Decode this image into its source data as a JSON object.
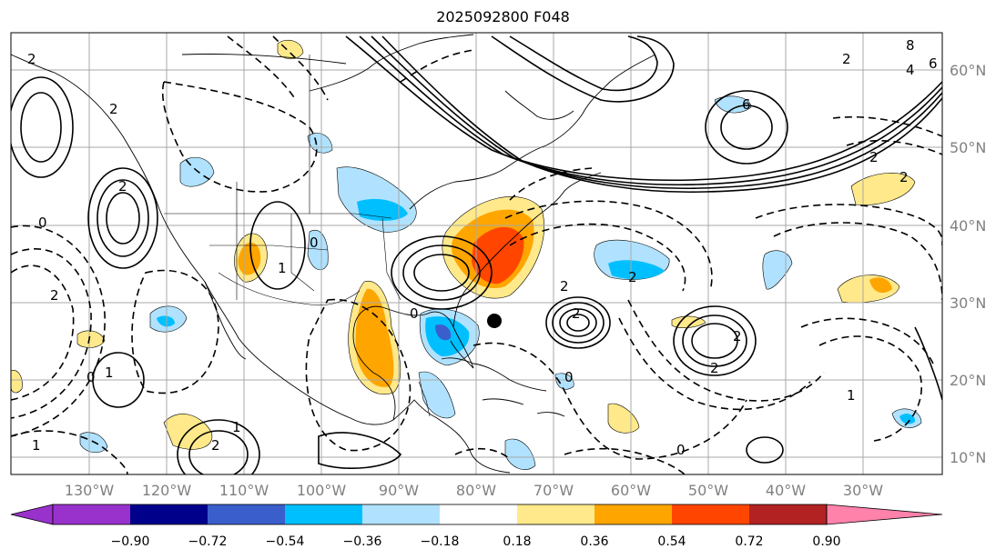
{
  "title": "2025092800 F048",
  "lon_labels": [
    "130°W",
    "120°W",
    "110°W",
    "100°W",
    "90°W",
    "80°W",
    "70°W",
    "60°W",
    "50°W",
    "40°W",
    "30°W"
  ],
  "lat_labels": [
    "60°N",
    "50°N",
    "40°N",
    "30°N",
    "20°N",
    "10°N"
  ],
  "colorbar": {
    "tick_labels": [
      "−0.90",
      "−0.72",
      "−0.54",
      "−0.36",
      "−0.18",
      "0.18",
      "0.36",
      "0.54",
      "0.72",
      "0.90"
    ],
    "colors": [
      "#9932cc",
      "#00008b",
      "#3a5fcd",
      "#00bfff",
      "#b0e2ff",
      "#ffffff",
      "#ffe98a",
      "#ffa500",
      "#ff4500",
      "#b22222",
      "#ff82ab"
    ],
    "extend": "both"
  },
  "contour_labels": [
    "8",
    "6",
    "4",
    "6",
    "2",
    "2",
    "2",
    "0",
    "2",
    "0",
    "2",
    "2",
    "1",
    "1",
    "0",
    "1",
    "2",
    "2",
    "1",
    "0",
    "2",
    "1",
    "0",
    "2",
    "2",
    "2",
    "2",
    "0"
  ],
  "marker": "storm-position-dot",
  "colors": {
    "grid": "#a9a9a9",
    "contour": "#000000",
    "label": "#808080"
  }
}
